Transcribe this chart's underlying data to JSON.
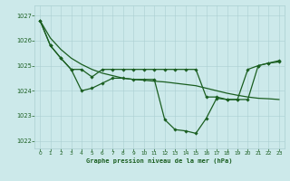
{
  "title": "Graphe pression niveau de la mer (hPa)",
  "background_color": "#cce9ea",
  "grid_color": "#aacfd1",
  "line_color": "#1a5e20",
  "ylim": [
    1021.7,
    1027.4
  ],
  "yticks": [
    1022,
    1023,
    1024,
    1025,
    1026,
    1027
  ],
  "x_ticks": [
    0,
    1,
    2,
    3,
    4,
    5,
    6,
    7,
    8,
    9,
    10,
    11,
    12,
    13,
    14,
    15,
    16,
    17,
    18,
    19,
    20,
    21,
    22,
    23
  ],
  "trend_y": [
    1026.8,
    1026.1,
    1025.65,
    1025.3,
    1025.05,
    1024.85,
    1024.7,
    1024.6,
    1024.5,
    1024.45,
    1024.42,
    1024.38,
    1024.35,
    1024.3,
    1024.25,
    1024.2,
    1024.1,
    1024.0,
    1023.9,
    1023.82,
    1023.75,
    1023.7,
    1023.68,
    1023.65
  ],
  "main_y": [
    1026.8,
    1025.8,
    1025.3,
    1024.85,
    1024.0,
    1024.1,
    1024.3,
    1024.5,
    1024.5,
    1024.45,
    1024.45,
    1024.45,
    1022.85,
    1022.45,
    1022.4,
    1022.3,
    1022.9,
    1023.7,
    1023.65,
    1023.65,
    1024.85,
    1025.0,
    1025.1,
    1025.2
  ],
  "smooth_y": [
    1026.8,
    1025.8,
    1025.3,
    1024.85,
    1024.85,
    1024.55,
    1024.85,
    1024.85,
    1024.85,
    1024.85,
    1024.85,
    1024.85,
    1024.85,
    1024.85,
    1024.85,
    1024.85,
    1023.75,
    1023.75,
    1023.65,
    1023.65,
    1023.65,
    1025.0,
    1025.1,
    1025.15
  ],
  "font_color": "#1a5e20"
}
